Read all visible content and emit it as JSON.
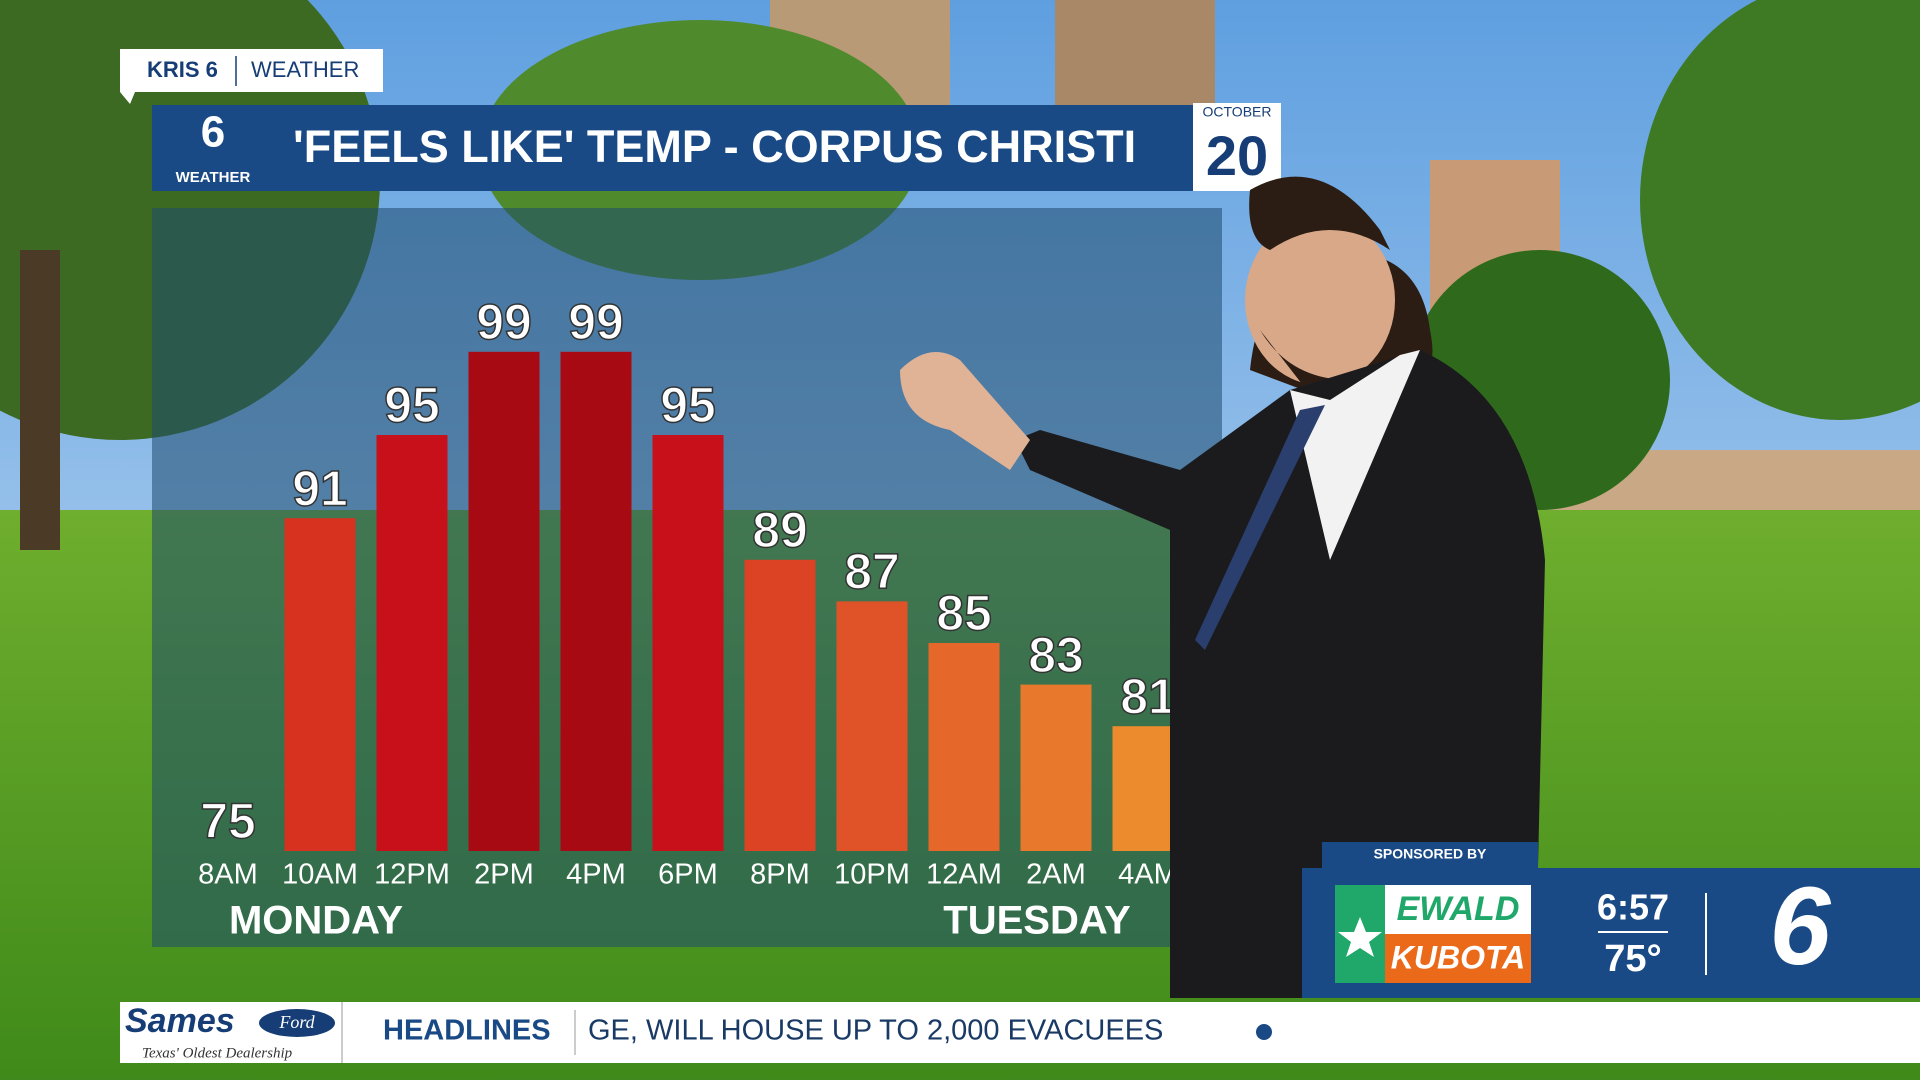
{
  "chart_data": {
    "type": "bar",
    "title": "'FEELS LIKE' TEMP  - CORPUS CHRISTI",
    "categories": [
      "8AM",
      "10AM",
      "12PM",
      "2PM",
      "4PM",
      "6PM",
      "8PM",
      "10PM",
      "12AM",
      "2AM",
      "4AM"
    ],
    "values": [
      75,
      91,
      95,
      99,
      99,
      95,
      89,
      87,
      85,
      83,
      81
    ],
    "colors": [
      "#d7321f",
      "#d7321f",
      "#c8101a",
      "#a80a14",
      "#a80a14",
      "#c8101a",
      "#dc4324",
      "#e05328",
      "#e5672a",
      "#e8792c",
      "#ec8a2e"
    ],
    "ylim": [
      75,
      100
    ],
    "day_labels": [
      "MONDAY",
      "TUESDAY"
    ]
  },
  "header": {
    "station": "KRIS 6",
    "section": "WEATHER",
    "logo_number": "6",
    "logo_text": "WEATHER",
    "month": "OCTOBER",
    "day": "20"
  },
  "sponsor": {
    "label": "SPONSORED BY",
    "name_top": "EWALD",
    "name_bottom": "KUBOTA",
    "time": "6:57",
    "temperature": "75°",
    "channel": "6"
  },
  "ticker": {
    "brand": "Sames",
    "brand_badge": "Ford",
    "brand_tagline": "Texas' Oldest Dealership",
    "label": "HEADLINES",
    "text": "GE, WILL HOUSE UP TO 2,000 EVACUEES"
  }
}
